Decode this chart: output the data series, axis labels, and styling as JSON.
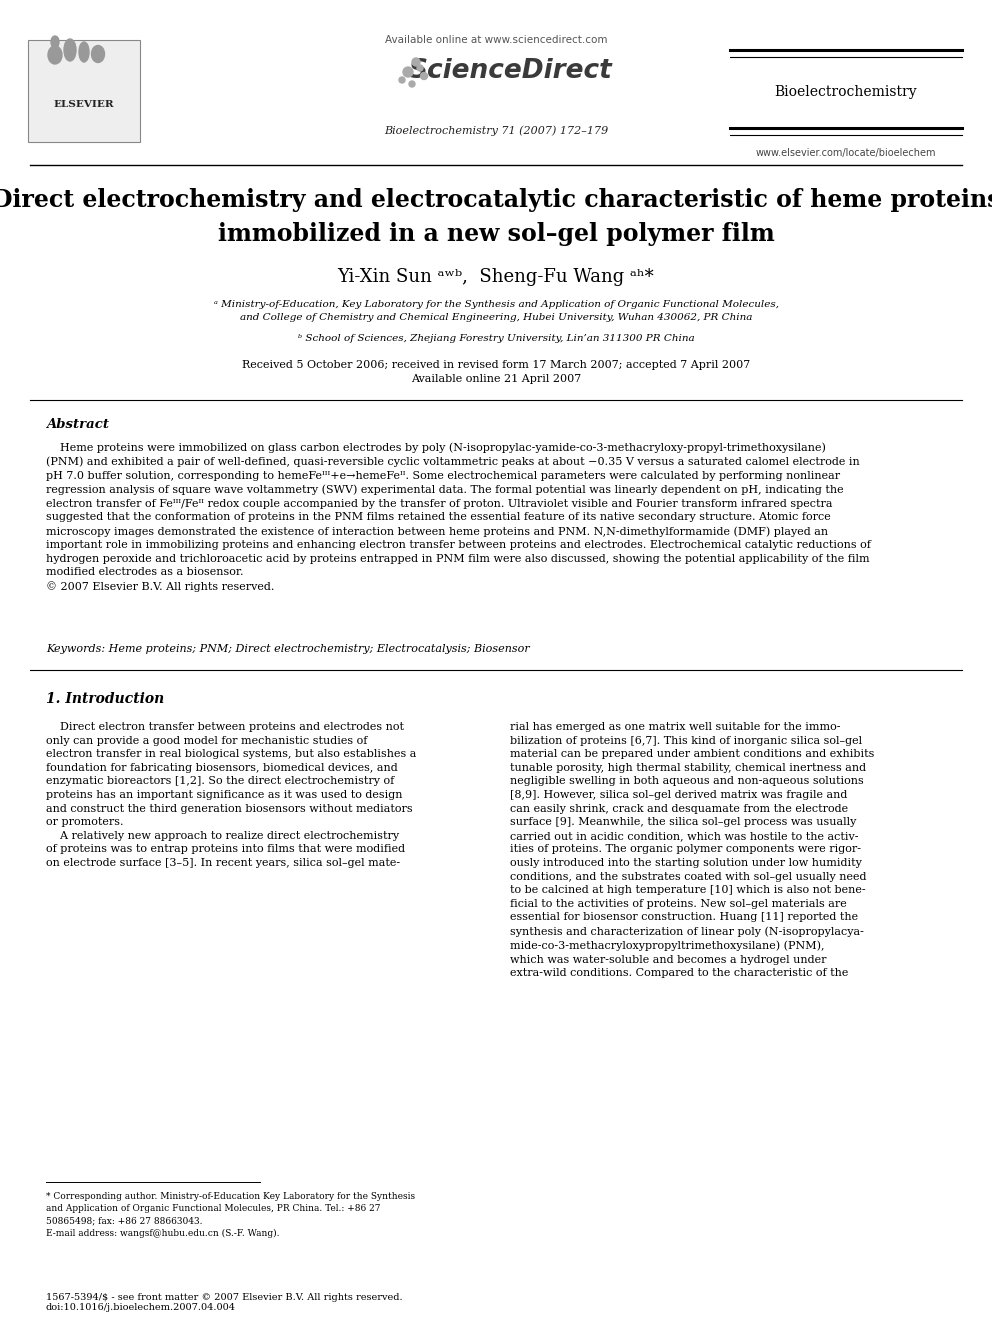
{
  "page_bg": "#ffffff",
  "header": {
    "available_online": "Available online at www.sciencedirect.com",
    "journal_name_header": "Bioelectrochemistry",
    "journal_citation": "Bioelectrochemistry 71 (2007) 172–179",
    "website": "www.elsevier.com/locate/bioelechem"
  },
  "title": "Direct electrochemistry and electrocatalytic characteristic of heme proteins\nimmobilized in a new sol–gel polymer film",
  "authors": "Yi-Xin Sun ᵃʷᵇ,  Sheng-Fu Wang ᵃʰ*",
  "affil1": "ᵃ Ministry-of-Education, Key Laboratory for the Synthesis and Application of Organic Functional Molecules,\nand College of Chemistry and Chemical Engineering, Hubei University, Wuhan 430062, PR China",
  "affil2": "ᵇ School of Sciences, Zhejiang Forestry University, Lin’an 311300 PR China",
  "dates": "Received 5 October 2006; received in revised form 17 March 2007; accepted 7 April 2007\nAvailable online 21 April 2007",
  "abstract_heading": "Abstract",
  "abstract_text": "    Heme proteins were immobilized on glass carbon electrodes by poly (N-isopropylac-yamide-co-3-methacryloxy-propyl-trimethoxysilane)\n(PNM) and exhibited a pair of well-defined, quasi-reversible cyclic voltammetric peaks at about −0.35 V versus a saturated calomel electrode in\npH 7.0 buffer solution, corresponding to hemeFeᴵᴵᴵ+e→hemeFeᴵᴵ. Some electrochemical parameters were calculated by performing nonlinear\nregression analysis of square wave voltammetry (SWV) experimental data. The formal potential was linearly dependent on pH, indicating the\nelectron transfer of Feᴵᴵᴵ/Feᴵᴵ redox couple accompanied by the transfer of proton. Ultraviolet visible and Fourier transform infrared spectra\nsuggested that the conformation of proteins in the PNM films retained the essential feature of its native secondary structure. Atomic force\nmicroscopy images demonstrated the existence of interaction between heme proteins and PNM. N,N-dimethylformamide (DMF) played an\nimportant role in immobilizing proteins and enhancing electron transfer between proteins and electrodes. Electrochemical catalytic reductions of\nhydrogen peroxide and trichloroacetic acid by proteins entrapped in PNM film were also discussed, showing the potential applicability of the film\nmodified electrodes as a biosensor.\n© 2007 Elsevier B.V. All rights reserved.",
  "keywords": "Keywords: Heme proteins; PNM; Direct electrochemistry; Electrocatalysis; Biosensor",
  "intro_heading": "1. Introduction",
  "intro_left": "    Direct electron transfer between proteins and electrodes not\nonly can provide a good model for mechanistic studies of\nelectron transfer in real biological systems, but also establishes a\nfoundation for fabricating biosensors, biomedical devices, and\nenzymatic bioreactors [1,2]. So the direct electrochemistry of\nproteins has an important significance as it was used to design\nand construct the third generation biosensors without mediators\nor promoters.\n    A relatively new approach to realize direct electrochemistry\nof proteins was to entrap proteins into films that were modified\non electrode surface [3–5]. In recent years, silica sol–gel mate-",
  "intro_right": "rial has emerged as one matrix well suitable for the immo-\nbilization of proteins [6,7]. This kind of inorganic silica sol–gel\nmaterial can be prepared under ambient conditions and exhibits\ntunable porosity, high thermal stability, chemical inertness and\nnegligible swelling in both aqueous and non-aqueous solutions\n[8,9]. However, silica sol–gel derived matrix was fragile and\ncan easily shrink, crack and desquamate from the electrode\nsurface [9]. Meanwhile, the silica sol–gel process was usually\ncarried out in acidic condition, which was hostile to the activ-\nities of proteins. The organic polymer components were rigor-\nously introduced into the starting solution under low humidity\nconditions, and the substrates coated with sol–gel usually need\nto be calcined at high temperature [10] which is also not bene-\nficial to the activities of proteins. New sol–gel materials are\nessential for biosensor construction. Huang [11] reported the\nsynthesis and characterization of linear poly (N-isopropylacya-\nmide-co-3-methacryloxypropyltrimethoxysilane) (PNM),\nwhich was water-soluble and becomes a hydrogel under\nextra-wild conditions. Compared to the characteristic of the",
  "footnote_left": "* Corresponding author. Ministry-of-Education Key Laboratory for the Synthesis\nand Application of Organic Functional Molecules, PR China. Tel.: +86 27\n50865498; fax: +86 27 88663043.\nE-mail address: wangsf@hubu.edu.cn (S.-F. Wang).",
  "footnote_bottom": "1567-5394/$ - see front matter © 2007 Elsevier B.V. All rights reserved.\ndoi:10.1016/j.bioelechem.2007.04.004"
}
